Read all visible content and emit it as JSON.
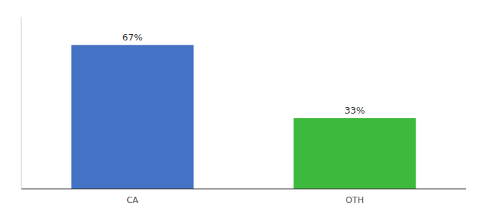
{
  "chart_data": {
    "type": "bar",
    "categories": [
      "CA",
      "OTH"
    ],
    "values": [
      67,
      33
    ],
    "value_labels": [
      "67%",
      "33%"
    ],
    "colors": [
      "#4472c4",
      "#3dba3d"
    ],
    "ylim": [
      0,
      80
    ],
    "data_labels": true,
    "tick_labels": "x"
  }
}
